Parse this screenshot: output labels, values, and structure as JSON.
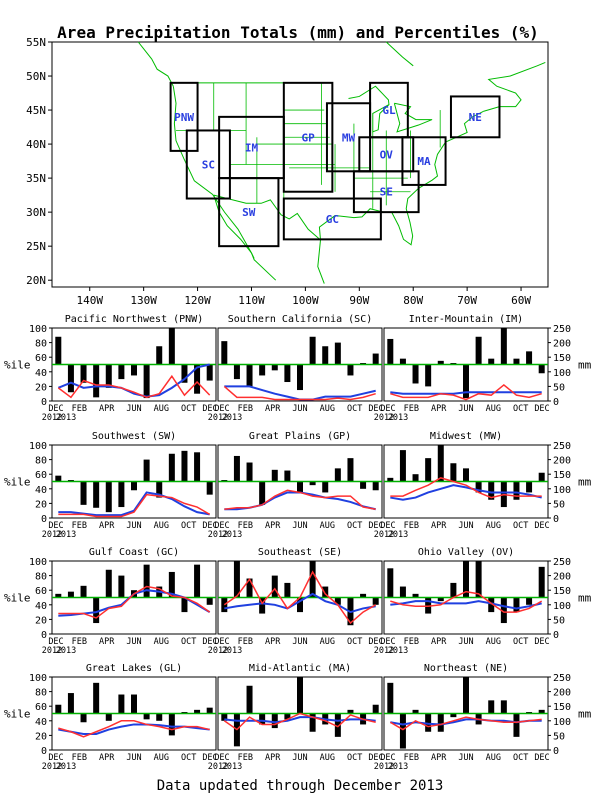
{
  "title": "Area Precipitation Totals (mm) and Percentiles (%)",
  "footer": "Data updated through December 2013",
  "colors": {
    "bars": "#000000",
    "percentile_line": "#ff3030",
    "normal_line": "#2040e0",
    "reference_line": "#00b000",
    "state_lines": "#00bb00",
    "region_boxes": "#000000",
    "region_labels": "#2a3fe0"
  },
  "map": {
    "lat_ticks": [
      "55N",
      "50N",
      "45N",
      "40N",
      "35N",
      "30N",
      "25N",
      "20N"
    ],
    "lon_ticks": [
      "140W",
      "130W",
      "120W",
      "110W",
      "100W",
      "90W",
      "80W",
      "70W",
      "60W"
    ],
    "regions": [
      {
        "code": "PNW",
        "lon": [
          -125,
          -120
        ],
        "lat": [
          39,
          49
        ]
      },
      {
        "code": "SC",
        "lon": [
          -122,
          -114
        ],
        "lat": [
          32,
          42
        ]
      },
      {
        "code": "IM",
        "lon": [
          -116,
          -104
        ],
        "lat": [
          35,
          44
        ]
      },
      {
        "code": "SW",
        "lon": [
          -116,
          -105
        ],
        "lat": [
          25,
          35
        ]
      },
      {
        "code": "GP",
        "lon": [
          -104,
          -95
        ],
        "lat": [
          33,
          49
        ]
      },
      {
        "code": "MW",
        "lon": [
          -96,
          -88
        ],
        "lat": [
          36,
          46
        ]
      },
      {
        "code": "GL",
        "lon": [
          -88,
          -81
        ],
        "lat": [
          41,
          49
        ]
      },
      {
        "code": "NE",
        "lon": [
          -73,
          -64
        ],
        "lat": [
          41,
          47
        ]
      },
      {
        "code": "OV",
        "lon": [
          -90,
          -80
        ],
        "lat": [
          36,
          41
        ]
      },
      {
        "code": "MA",
        "lon": [
          -82,
          -74
        ],
        "lat": [
          34,
          41
        ]
      },
      {
        "code": "SE",
        "lon": [
          -91,
          -79
        ],
        "lat": [
          30,
          36
        ]
      },
      {
        "code": "GC",
        "lon": [
          -104,
          -86
        ],
        "lat": [
          26,
          32
        ]
      }
    ]
  },
  "axes": {
    "left_label": "%ile",
    "right_label": "mm",
    "pct_ticks": [
      "0",
      "20",
      "40",
      "60",
      "80",
      "100"
    ],
    "mm_ticks": [
      "0",
      "50",
      "100",
      "150",
      "200",
      "250"
    ],
    "month_labels": [
      "DEC",
      "FEB",
      "APR",
      "JUN",
      "AUG",
      "OCT",
      "DEC"
    ],
    "year_labels": [
      "2012",
      "2013"
    ]
  },
  "chart_data": [
    {
      "type": "bar",
      "title": "Pacific Northwest (PNW)",
      "ylim": [
        0,
        100
      ],
      "y2lim": [
        0,
        250
      ],
      "series": [
        {
          "values": [
            88,
            12,
            25,
            5,
            18,
            30,
            35,
            4,
            75,
            100,
            25,
            10,
            28
          ]
        },
        {
          "values": [
            18,
            5,
            28,
            22,
            22,
            18,
            12,
            5,
            10,
            34,
            8,
            26,
            8
          ]
        },
        {
          "values": [
            18,
            25,
            18,
            20,
            20,
            18,
            10,
            6,
            8,
            18,
            30,
            46,
            50
          ]
        }
      ]
    },
    {
      "type": "bar",
      "title": "Southern California (SC)",
      "ylim": [
        0,
        100
      ],
      "y2lim": [
        0,
        250
      ],
      "series": [
        {
          "values": [
            82,
            30,
            20,
            35,
            42,
            26,
            15,
            88,
            75,
            80,
            35,
            52,
            65
          ]
        },
        {
          "values": [
            20,
            5,
            5,
            5,
            2,
            2,
            2,
            2,
            2,
            4,
            2,
            5,
            10
          ]
        },
        {
          "values": [
            20,
            20,
            20,
            15,
            10,
            6,
            2,
            2,
            6,
            6,
            6,
            10,
            14
          ]
        }
      ]
    },
    {
      "type": "bar",
      "title": "Inter-Mountain (IM)",
      "ylim": [
        0,
        100
      ],
      "y2lim": [
        0,
        250
      ],
      "series": [
        {
          "values": [
            85,
            58,
            24,
            20,
            55,
            52,
            4,
            88,
            58,
            100,
            58,
            68,
            38
          ]
        },
        {
          "values": [
            10,
            5,
            5,
            5,
            10,
            8,
            2,
            10,
            8,
            22,
            8,
            5,
            10
          ]
        },
        {
          "values": [
            12,
            10,
            10,
            10,
            10,
            10,
            12,
            12,
            12,
            12,
            12,
            12,
            12
          ]
        }
      ]
    },
    {
      "type": "bar",
      "title": "Southwest (SW)",
      "ylim": [
        0,
        100
      ],
      "y2lim": [
        0,
        250
      ],
      "series": [
        {
          "values": [
            58,
            52,
            18,
            14,
            8,
            15,
            38,
            80,
            28,
            88,
            92,
            90,
            32
          ]
        },
        {
          "values": [
            5,
            5,
            5,
            2,
            2,
            2,
            8,
            32,
            30,
            28,
            20,
            15,
            5
          ]
        },
        {
          "values": [
            8,
            8,
            6,
            4,
            4,
            4,
            10,
            35,
            32,
            26,
            16,
            8,
            5
          ]
        }
      ]
    },
    {
      "type": "bar",
      "title": "Great Plains (GP)",
      "ylim": [
        0,
        100
      ],
      "y2lim": [
        0,
        250
      ],
      "series": [
        {
          "values": [
            52,
            85,
            76,
            18,
            66,
            65,
            35,
            45,
            35,
            68,
            82,
            40,
            38
          ]
        },
        {
          "values": [
            12,
            14,
            14,
            18,
            30,
            38,
            35,
            30,
            28,
            30,
            30,
            15,
            12
          ]
        },
        {
          "values": [
            12,
            12,
            14,
            18,
            28,
            35,
            35,
            32,
            28,
            26,
            22,
            16,
            12
          ]
        }
      ]
    },
    {
      "type": "bar",
      "title": "Midwest (MW)",
      "ylim": [
        0,
        100
      ],
      "y2lim": [
        0,
        250
      ],
      "series": [
        {
          "values": [
            55,
            93,
            60,
            82,
            100,
            75,
            68,
            35,
            25,
            15,
            25,
            35,
            62
          ]
        },
        {
          "values": [
            30,
            30,
            38,
            45,
            55,
            50,
            45,
            35,
            28,
            32,
            30,
            30,
            30
          ]
        },
        {
          "values": [
            28,
            25,
            28,
            35,
            40,
            45,
            42,
            38,
            35,
            35,
            35,
            32,
            28
          ]
        }
      ]
    },
    {
      "type": "bar",
      "title": "Gulf Coast (GC)",
      "ylim": [
        0,
        100
      ],
      "y2lim": [
        0,
        250
      ],
      "series": [
        {
          "values": [
            55,
            58,
            66,
            15,
            88,
            80,
            60,
            95,
            65,
            85,
            30,
            95,
            40
          ]
        },
        {
          "values": [
            28,
            28,
            28,
            22,
            35,
            38,
            55,
            65,
            62,
            52,
            50,
            42,
            30
          ]
        },
        {
          "values": [
            25,
            26,
            28,
            30,
            36,
            40,
            55,
            60,
            58,
            55,
            50,
            40,
            30
          ]
        }
      ]
    },
    {
      "type": "bar",
      "title": "Southeast (SE)",
      "ylim": [
        0,
        100
      ],
      "y2lim": [
        0,
        250
      ],
      "series": [
        {
          "values": [
            30,
            100,
            76,
            28,
            80,
            70,
            30,
            100,
            65,
            40,
            12,
            55,
            40
          ]
        },
        {
          "values": [
            40,
            52,
            75,
            42,
            62,
            35,
            50,
            85,
            55,
            40,
            15,
            30,
            40
          ]
        },
        {
          "values": [
            35,
            38,
            40,
            42,
            40,
            35,
            45,
            55,
            45,
            40,
            30,
            35,
            38
          ]
        }
      ]
    },
    {
      "type": "bar",
      "title": "Ohio Valley (OV)",
      "ylim": [
        0,
        100
      ],
      "y2lim": [
        0,
        250
      ],
      "series": [
        {
          "values": [
            90,
            65,
            55,
            28,
            45,
            70,
            100,
            100,
            30,
            15,
            30,
            40,
            92
          ]
        },
        {
          "values": [
            45,
            40,
            38,
            38,
            40,
            50,
            58,
            55,
            42,
            30,
            30,
            35,
            45
          ]
        },
        {
          "values": [
            40,
            42,
            45,
            45,
            42,
            42,
            42,
            45,
            42,
            38,
            35,
            38,
            42
          ]
        }
      ]
    },
    {
      "type": "bar",
      "title": "Great Lakes (GL)",
      "ylim": [
        0,
        100
      ],
      "y2lim": [
        0,
        250
      ],
      "series": [
        {
          "values": [
            62,
            78,
            38,
            92,
            40,
            76,
            76,
            42,
            40,
            20,
            52,
            55,
            58
          ]
        },
        {
          "values": [
            30,
            25,
            18,
            25,
            32,
            40,
            40,
            35,
            32,
            28,
            32,
            32,
            28
          ]
        },
        {
          "values": [
            28,
            25,
            22,
            22,
            28,
            32,
            35,
            35,
            34,
            32,
            32,
            30,
            28
          ]
        }
      ]
    },
    {
      "type": "bar",
      "title": "Mid-Atlantic (MA)",
      "ylim": [
        0,
        100
      ],
      "y2lim": [
        0,
        250
      ],
      "series": [
        {
          "values": [
            40,
            5,
            88,
            35,
            30,
            42,
            100,
            25,
            35,
            18,
            55,
            35,
            62
          ]
        },
        {
          "values": [
            40,
            28,
            45,
            35,
            35,
            42,
            50,
            45,
            40,
            32,
            48,
            42,
            38
          ]
        },
        {
          "values": [
            42,
            40,
            40,
            40,
            38,
            40,
            45,
            45,
            42,
            40,
            42,
            42,
            40
          ]
        }
      ]
    },
    {
      "type": "bar",
      "title": "Northeast (NE)",
      "ylim": [
        0,
        100
      ],
      "y2lim": [
        0,
        250
      ],
      "series": [
        {
          "values": [
            92,
            2,
            55,
            25,
            25,
            45,
            100,
            35,
            68,
            68,
            18,
            52,
            55
          ]
        },
        {
          "values": [
            38,
            28,
            40,
            32,
            35,
            40,
            45,
            42,
            40,
            38,
            38,
            40,
            42
          ]
        },
        {
          "values": [
            38,
            35,
            38,
            36,
            35,
            38,
            42,
            42,
            40,
            40,
            38,
            40,
            40
          ]
        }
      ]
    }
  ]
}
